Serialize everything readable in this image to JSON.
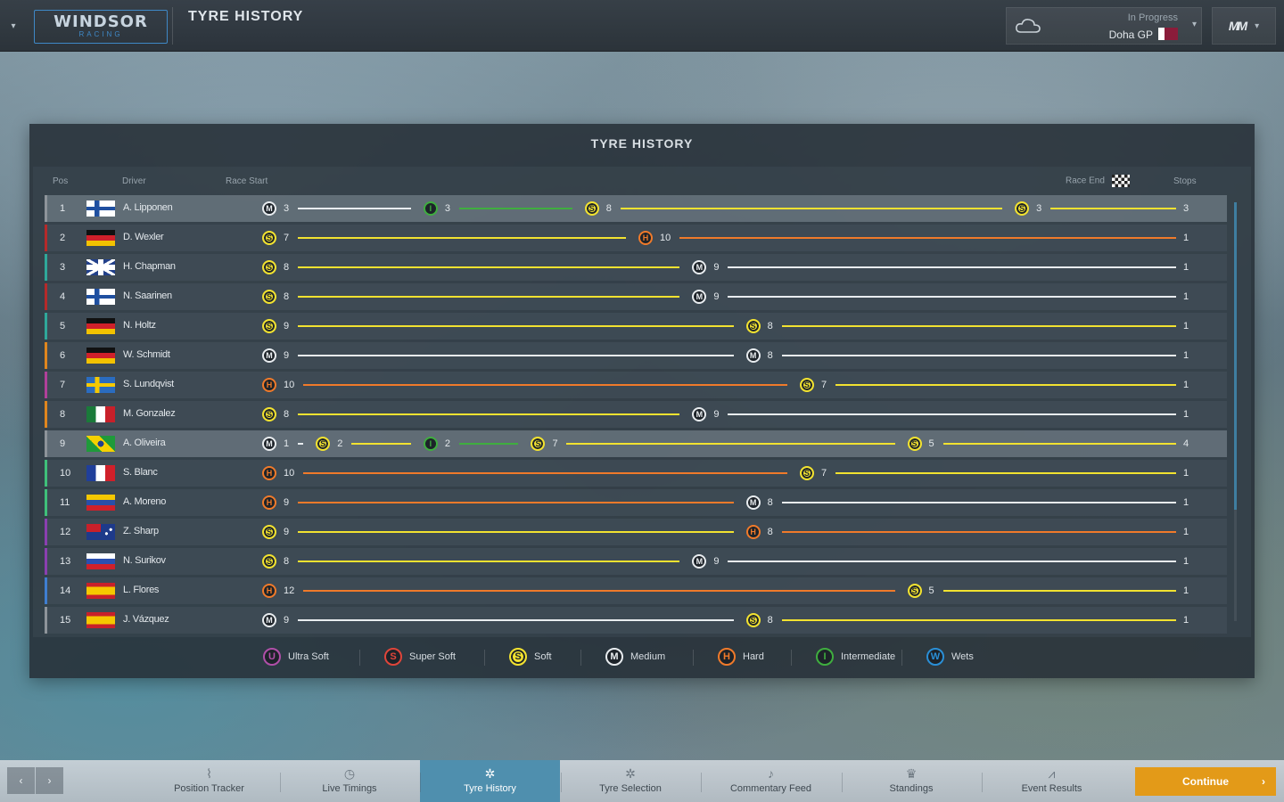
{
  "header": {
    "team_name": "WINDSOR",
    "team_sub": "RACING",
    "title": "TYRE HISTORY",
    "race_status": "In Progress",
    "race_name": "Doha GP",
    "weather_icon": "cloud-icon",
    "brand_mark": "MM"
  },
  "panel": {
    "title": "TYRE HISTORY",
    "columns": {
      "pos": "Pos",
      "driver": "Driver",
      "race_start": "Race Start",
      "race_end": "Race End",
      "stops": "Stops"
    },
    "rows": [
      {
        "pos": "1",
        "driver": "A. Lipponen",
        "country": "FI",
        "team_color": "#8d949a",
        "selected": true,
        "stops": "3",
        "stints": [
          {
            "tyre": "M",
            "laps": 3
          },
          {
            "tyre": "I",
            "laps": 3
          },
          {
            "tyre": "S",
            "laps": 8
          },
          {
            "tyre": "S",
            "laps": 3
          }
        ]
      },
      {
        "pos": "2",
        "driver": "D. Wexler",
        "country": "DE",
        "team_color": "#b52a2a",
        "selected": false,
        "stops": "1",
        "stints": [
          {
            "tyre": "S",
            "laps": 7
          },
          {
            "tyre": "H",
            "laps": 10
          }
        ]
      },
      {
        "pos": "3",
        "driver": "H. Chapman",
        "country": "GB",
        "team_color": "#2fa89a",
        "selected": false,
        "stops": "1",
        "stints": [
          {
            "tyre": "S",
            "laps": 8
          },
          {
            "tyre": "M",
            "laps": 9
          }
        ]
      },
      {
        "pos": "4",
        "driver": "N. Saarinen",
        "country": "FI",
        "team_color": "#b52a2a",
        "selected": false,
        "stops": "1",
        "stints": [
          {
            "tyre": "S",
            "laps": 8
          },
          {
            "tyre": "M",
            "laps": 9
          }
        ]
      },
      {
        "pos": "5",
        "driver": "N. Holtz",
        "country": "DE",
        "team_color": "#2fa89a",
        "selected": false,
        "stops": "1",
        "stints": [
          {
            "tyre": "S",
            "laps": 9
          },
          {
            "tyre": "S",
            "laps": 8
          }
        ]
      },
      {
        "pos": "6",
        "driver": "W. Schmidt",
        "country": "DE",
        "team_color": "#e0861e",
        "selected": false,
        "stops": "1",
        "stints": [
          {
            "tyre": "M",
            "laps": 9
          },
          {
            "tyre": "M",
            "laps": 8
          }
        ]
      },
      {
        "pos": "7",
        "driver": "S. Lundqvist",
        "country": "SE",
        "team_color": "#b0409a",
        "selected": false,
        "stops": "1",
        "stints": [
          {
            "tyre": "H",
            "laps": 10
          },
          {
            "tyre": "S",
            "laps": 7
          }
        ]
      },
      {
        "pos": "8",
        "driver": "M. Gonzalez",
        "country": "MX",
        "team_color": "#e0861e",
        "selected": false,
        "stops": "1",
        "stints": [
          {
            "tyre": "S",
            "laps": 8
          },
          {
            "tyre": "M",
            "laps": 9
          }
        ]
      },
      {
        "pos": "9",
        "driver": "A. Oliveira",
        "country": "BR",
        "team_color": "#8d949a",
        "selected": true,
        "stops": "4",
        "stints": [
          {
            "tyre": "M",
            "laps": 1
          },
          {
            "tyre": "S",
            "laps": 2
          },
          {
            "tyre": "I",
            "laps": 2
          },
          {
            "tyre": "S",
            "laps": 7
          },
          {
            "tyre": "S",
            "laps": 5
          }
        ]
      },
      {
        "pos": "10",
        "driver": "S. Blanc",
        "country": "FR",
        "team_color": "#3fc07a",
        "selected": false,
        "stops": "1",
        "stints": [
          {
            "tyre": "H",
            "laps": 10
          },
          {
            "tyre": "S",
            "laps": 7
          }
        ]
      },
      {
        "pos": "11",
        "driver": "A. Moreno",
        "country": "VE",
        "team_color": "#3fc07a",
        "selected": false,
        "stops": "1",
        "stints": [
          {
            "tyre": "H",
            "laps": 9
          },
          {
            "tyre": "M",
            "laps": 8
          }
        ]
      },
      {
        "pos": "12",
        "driver": "Z. Sharp",
        "country": "AU",
        "team_color": "#8a3fb0",
        "selected": false,
        "stops": "1",
        "stints": [
          {
            "tyre": "S",
            "laps": 9
          },
          {
            "tyre": "H",
            "laps": 8
          }
        ]
      },
      {
        "pos": "13",
        "driver": "N. Surikov",
        "country": "RU",
        "team_color": "#8a3fb0",
        "selected": false,
        "stops": "1",
        "stints": [
          {
            "tyre": "S",
            "laps": 8
          },
          {
            "tyre": "M",
            "laps": 9
          }
        ]
      },
      {
        "pos": "14",
        "driver": "L. Flores",
        "country": "ES",
        "team_color": "#3f7ed0",
        "selected": false,
        "stops": "1",
        "stints": [
          {
            "tyre": "H",
            "laps": 12
          },
          {
            "tyre": "S",
            "laps": 5
          }
        ]
      },
      {
        "pos": "15",
        "driver": "J. Vázquez",
        "country": "ES",
        "team_color": "#8d949a",
        "selected": false,
        "stops": "1",
        "stints": [
          {
            "tyre": "M",
            "laps": 9
          },
          {
            "tyre": "S",
            "laps": 8
          }
        ]
      }
    ],
    "total_laps": 17
  },
  "legend": [
    {
      "code": "U",
      "label": "Ultra Soft",
      "color": "#b04fa8"
    },
    {
      "code": "S",
      "label": "Super Soft",
      "color": "#e0453a",
      "class": "SS"
    },
    {
      "code": "S",
      "label": "Soft",
      "color": "#f2e230"
    },
    {
      "code": "M",
      "label": "Medium",
      "color": "#e8ecef"
    },
    {
      "code": "H",
      "label": "Hard",
      "color": "#f07a2a"
    },
    {
      "code": "I",
      "label": "Intermediate",
      "color": "#3fae3f"
    },
    {
      "code": "W",
      "label": "Wets",
      "color": "#2a8fd6"
    }
  ],
  "bottom_nav": {
    "tabs": [
      {
        "label": "Position Tracker",
        "icon": "chart-icon",
        "glyph": "⌇",
        "active": false
      },
      {
        "label": "Live Timings",
        "icon": "stopwatch-icon",
        "glyph": "◷",
        "active": false
      },
      {
        "label": "Tyre History",
        "icon": "tyre-icon",
        "glyph": "✲",
        "active": true
      },
      {
        "label": "Tyre Selection",
        "icon": "tyre-icon",
        "glyph": "✲",
        "active": false
      },
      {
        "label": "Commentary Feed",
        "icon": "microphone-icon",
        "glyph": "♪",
        "active": false
      },
      {
        "label": "Standings",
        "icon": "trophy-icon",
        "glyph": "♛",
        "active": false
      },
      {
        "label": "Event Results",
        "icon": "graph-icon",
        "glyph": "⩘",
        "active": false
      }
    ],
    "continue_label": "Continue"
  }
}
